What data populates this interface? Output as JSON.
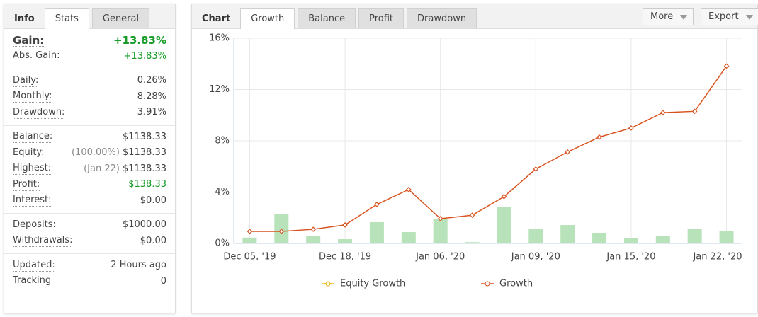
{
  "info_panel": {
    "tabs": [
      "Info",
      "Stats",
      "General"
    ],
    "sections": [
      [
        {
          "label": "Gain:",
          "value": "+13.83%",
          "color": "#1a9c2a",
          "bold": true
        },
        {
          "label": "Abs. Gain:",
          "value": "+13.83%",
          "color": "#1a9c2a"
        }
      ],
      [
        {
          "label": "Daily:",
          "value": "0.26%"
        },
        {
          "label": "Monthly:",
          "value": "8.28%"
        },
        {
          "label": "Drawdown:",
          "value": "3.91%"
        }
      ],
      [
        {
          "label": "Balance:",
          "value": "$1138.33"
        },
        {
          "label": "Equity:",
          "note": "(100.00%)",
          "value": "$1138.33"
        },
        {
          "label": "Highest:",
          "note": "(Jan 22)",
          "value": "$1138.33"
        },
        {
          "label": "Profit:",
          "value": "$138.33",
          "color": "#1a9c2a"
        },
        {
          "label": "Interest:",
          "value": "$0.00"
        }
      ],
      [
        {
          "label": "Deposits:",
          "value": "$1000.00"
        },
        {
          "label": "Withdrawals:",
          "value": "$0.00"
        }
      ],
      [
        {
          "label": "Updated:",
          "value": "2 Hours ago"
        },
        {
          "label": "Tracking",
          "value": "0"
        }
      ]
    ]
  },
  "chart_panel": {
    "tabs": [
      "Chart",
      "Growth",
      "Balance",
      "Profit",
      "Drawdown"
    ],
    "buttons": [
      "More",
      "Export"
    ]
  },
  "chart_data": {
    "type": "line",
    "categories": [
      "Dec 05, '19",
      null,
      null,
      "Dec 18, '19",
      null,
      null,
      "Jan 06, '20",
      null,
      null,
      "Jan 09, '20",
      null,
      null,
      "Jan 15, '20",
      null,
      null,
      "Jan 22, '20"
    ],
    "ylim": [
      0,
      16
    ],
    "yticks": [
      {
        "value": 0,
        "label": "0%"
      },
      {
        "value": 4,
        "label": "4%"
      },
      {
        "value": 8,
        "label": "8%"
      },
      {
        "value": 12,
        "label": "12%"
      },
      {
        "value": 16,
        "label": "16%"
      }
    ],
    "grid": true,
    "series": [
      {
        "type": "bar",
        "color": "#b8e2b9",
        "values": [
          0.45,
          2.26,
          0.55,
          0.33,
          1.66,
          0.88,
          1.88,
          0.1,
          2.87,
          1.16,
          1.43,
          0.83,
          0.39,
          0.55,
          1.16,
          0.94
        ]
      },
      {
        "type": "line",
        "name": "Equity Growth",
        "color": "#e8b400"
      },
      {
        "type": "line",
        "name": "Growth",
        "color": "#d9531e",
        "values": [
          0.94,
          0.94,
          1.1,
          1.44,
          3.04,
          4.2,
          1.93,
          2.2,
          3.65,
          5.8,
          7.13,
          8.29,
          9.0,
          10.2,
          10.3,
          13.83
        ]
      }
    ]
  }
}
